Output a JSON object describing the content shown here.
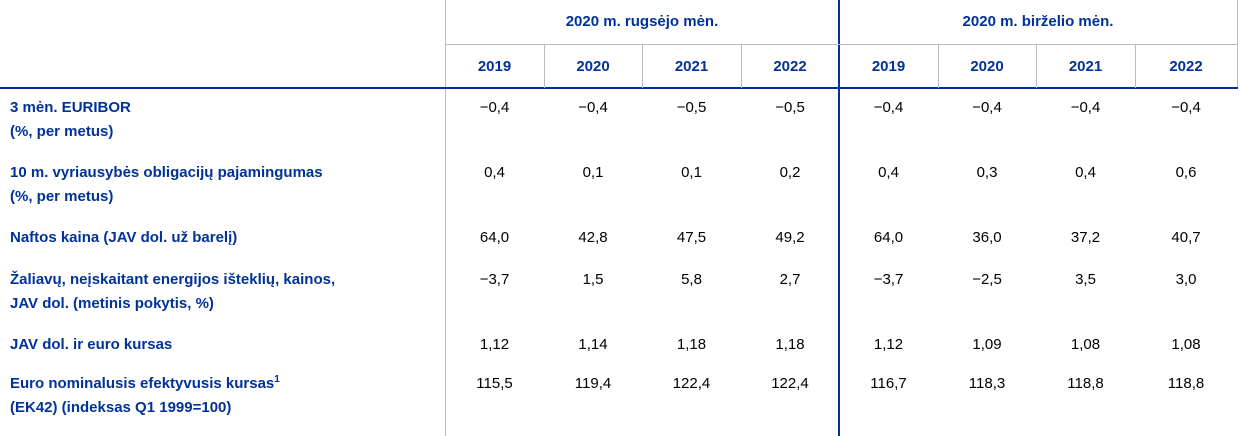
{
  "table": {
    "groups": [
      "2020 m. rugsėjo mėn.",
      "2020 m. birželio mėn."
    ],
    "years": [
      [
        "2019",
        "2020",
        "2021",
        "2022"
      ],
      [
        "2019",
        "2020",
        "2021",
        "2022"
      ]
    ],
    "rows": [
      {
        "label": [
          "3 mėn. EURIBOR",
          "(%, per metus)"
        ],
        "values": [
          "−0,4",
          "−0,4",
          "−0,5",
          "−0,5",
          "−0,4",
          "−0,4",
          "−0,4",
          "−0,4"
        ]
      },
      {
        "label": [
          "10 m. vyriausybės obligacijų pajamingumas",
          "(%, per metus)"
        ],
        "values": [
          "0,4",
          "0,1",
          "0,1",
          "0,2",
          "0,4",
          "0,3",
          "0,4",
          "0,6"
        ]
      },
      {
        "label": [
          "Naftos kaina (JAV dol. už barelį)"
        ],
        "values": [
          "64,0",
          "42,8",
          "47,5",
          "49,2",
          "64,0",
          "36,0",
          "37,2",
          "40,7"
        ]
      },
      {
        "label": [
          "Žaliavų, neįskaitant energijos išteklių, kainos,",
          "JAV dol. (metinis pokytis, %)"
        ],
        "values": [
          "−3,7",
          "1,5",
          "5,8",
          "2,7",
          "−3,7",
          "−2,5",
          "3,5",
          "3,0"
        ]
      },
      {
        "label": [
          "JAV dol. ir euro kursas"
        ],
        "values": [
          "1,12",
          "1,14",
          "1,18",
          "1,18",
          "1,12",
          "1,09",
          "1,08",
          "1,08"
        ]
      },
      {
        "label": [
          "Euro nominalusis efektyvusis kursas",
          "(EK42) (indeksas Q1 1999=100)"
        ],
        "footnote": "1",
        "values": [
          "115,5",
          "119,4",
          "122,4",
          "122,4",
          "116,7",
          "118,3",
          "118,8",
          "118,8"
        ]
      }
    ]
  }
}
